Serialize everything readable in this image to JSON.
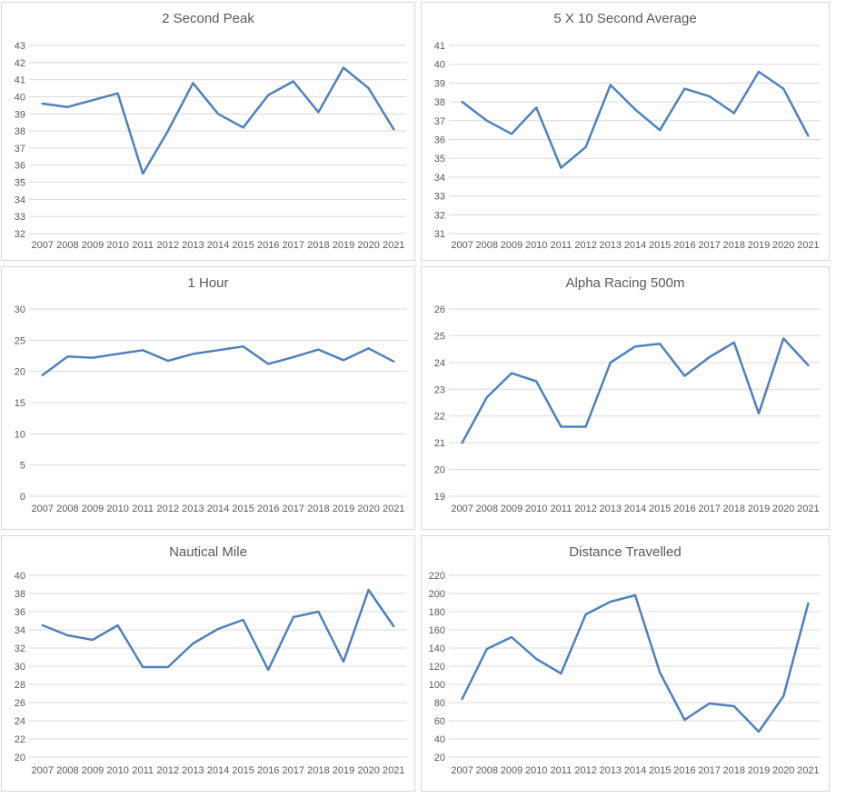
{
  "style": {
    "line_color": "#4F81BD",
    "grid_color": "#D9D9D9",
    "tick_text_color": "#595959",
    "title_color": "#595959",
    "panel_border_color": "#D7D7D7",
    "background": "#FFFFFF"
  },
  "chart_data": [
    {
      "type": "line",
      "title": "2 Second Peak",
      "categories": [
        "2007",
        "2008",
        "2009",
        "2010",
        "2011",
        "2012",
        "2013",
        "2014",
        "2015",
        "2016",
        "2017",
        "2018",
        "2019",
        "2020",
        "2021"
      ],
      "values": [
        39.6,
        39.4,
        39.8,
        40.2,
        35.5,
        38.0,
        40.8,
        39.0,
        38.2,
        40.1,
        40.9,
        39.1,
        41.7,
        40.5,
        38.1
      ],
      "xlabel": "",
      "ylabel": "",
      "ylim": [
        32,
        43
      ],
      "ytick_step": 1,
      "grid": true,
      "legend": "none"
    },
    {
      "type": "line",
      "title": "5 X 10 Second Average",
      "categories": [
        "2007",
        "2008",
        "2009",
        "2010",
        "2011",
        "2012",
        "2013",
        "2014",
        "2015",
        "2016",
        "2017",
        "2018",
        "2019",
        "2020",
        "2021"
      ],
      "values": [
        38.0,
        37.0,
        36.3,
        37.7,
        34.5,
        35.6,
        38.9,
        37.6,
        36.5,
        38.7,
        38.3,
        37.4,
        39.6,
        38.7,
        36.2
      ],
      "xlabel": "",
      "ylabel": "",
      "ylim": [
        31,
        41
      ],
      "ytick_step": 1,
      "grid": true,
      "legend": "none"
    },
    {
      "type": "line",
      "title": "1 Hour",
      "categories": [
        "2007",
        "2008",
        "2009",
        "2010",
        "2011",
        "2012",
        "2013",
        "2014",
        "2015",
        "2016",
        "2017",
        "2018",
        "2019",
        "2020",
        "2021"
      ],
      "values": [
        19.4,
        22.4,
        22.2,
        22.8,
        23.4,
        21.7,
        22.8,
        23.4,
        24.0,
        21.2,
        22.3,
        23.5,
        21.8,
        23.7,
        21.6
      ],
      "xlabel": "",
      "ylabel": "",
      "ylim": [
        0,
        30
      ],
      "ytick_step": 5,
      "grid": true,
      "legend": "none"
    },
    {
      "type": "line",
      "title": "Alpha Racing 500m",
      "categories": [
        "2007",
        "2008",
        "2009",
        "2010",
        "2011",
        "2012",
        "2013",
        "2014",
        "2015",
        "2016",
        "2017",
        "2018",
        "2019",
        "2020",
        "2021"
      ],
      "values": [
        21.0,
        22.7,
        23.6,
        23.3,
        21.6,
        21.6,
        24.0,
        24.6,
        24.7,
        23.5,
        24.2,
        24.75,
        22.1,
        24.9,
        23.9
      ],
      "xlabel": "",
      "ylabel": "",
      "ylim": [
        19,
        26
      ],
      "ytick_step": 1,
      "grid": true,
      "legend": "none"
    },
    {
      "type": "line",
      "title": "Nautical Mile",
      "categories": [
        "2007",
        "2008",
        "2009",
        "2010",
        "2011",
        "2012",
        "2013",
        "2014",
        "2015",
        "2016",
        "2017",
        "2018",
        "2019",
        "2020",
        "2021"
      ],
      "values": [
        34.5,
        33.4,
        32.9,
        34.5,
        29.9,
        29.9,
        32.5,
        34.1,
        35.1,
        29.6,
        35.4,
        36.0,
        30.5,
        38.4,
        34.4
      ],
      "xlabel": "",
      "ylabel": "",
      "ylim": [
        20,
        40
      ],
      "ytick_step": 2,
      "grid": true,
      "legend": "none"
    },
    {
      "type": "line",
      "title": "Distance Travelled",
      "categories": [
        "2007",
        "2008",
        "2009",
        "2010",
        "2011",
        "2012",
        "2013",
        "2014",
        "2015",
        "2016",
        "2017",
        "2018",
        "2019",
        "2020",
        "2021"
      ],
      "values": [
        84,
        139,
        152,
        128,
        112,
        177,
        191,
        198,
        113,
        61,
        79,
        76,
        48,
        87,
        189
      ],
      "xlabel": "",
      "ylabel": "",
      "ylim": [
        20,
        220
      ],
      "ytick_step": 20,
      "grid": true,
      "legend": "none"
    }
  ]
}
